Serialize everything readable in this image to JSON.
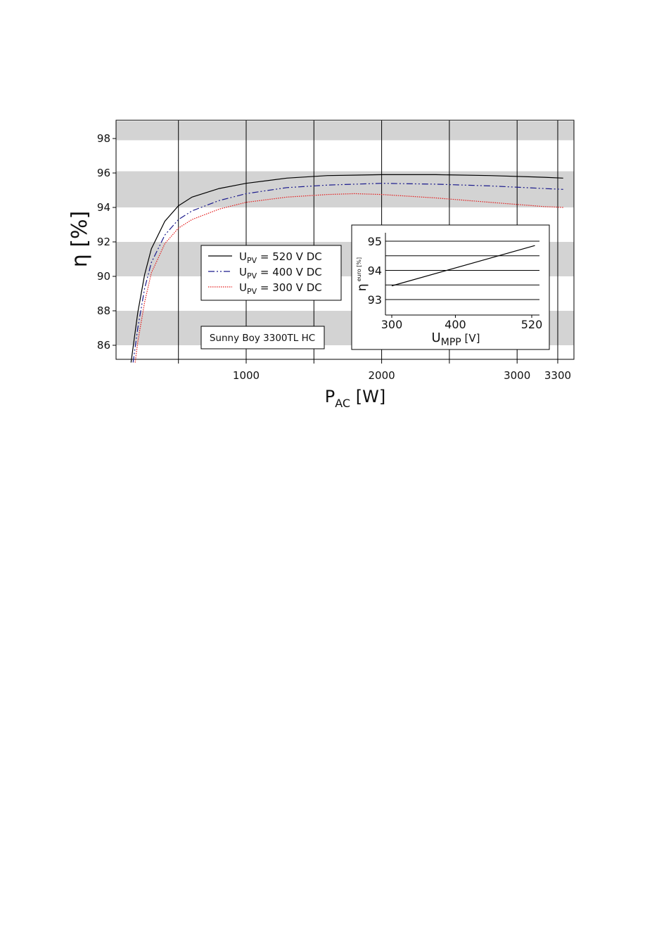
{
  "chart_data": [
    {
      "type": "line",
      "ylabel": "η [%]",
      "xlabel": {
        "main": "P",
        "sub": "AC",
        "unit": " [W]"
      },
      "ylim": [
        85,
        99
      ],
      "yticks": [
        "86",
        "88",
        "90",
        "92",
        "94",
        "96",
        "98"
      ],
      "xticks": [
        {
          "value": 1000,
          "label": "1000"
        },
        {
          "value": 2000,
          "label": "2000"
        },
        {
          "value": 3000,
          "label": "3000"
        },
        {
          "value": 3300,
          "label": "3300"
        }
      ],
      "grid": "alternating gray horizontal bands, vertical gridlines",
      "legend_placement": "center-left",
      "annotation": "Sunny Boy 3300TL HC",
      "series": [
        {
          "name": {
            "pre": "U",
            "sub": "PV",
            "post": " = 520 V DC"
          },
          "color": "#000000",
          "style": "solid",
          "points": [
            [
              150,
              85
            ],
            [
              200,
              87.9
            ],
            [
              250,
              90.1
            ],
            [
              300,
              91.6
            ],
            [
              400,
              93.2
            ],
            [
              500,
              94.1
            ],
            [
              600,
              94.6
            ],
            [
              800,
              95.1
            ],
            [
              1000,
              95.4
            ],
            [
              1300,
              95.7
            ],
            [
              1600,
              95.85
            ],
            [
              2000,
              95.9
            ],
            [
              2400,
              95.9
            ],
            [
              2800,
              95.85
            ],
            [
              3200,
              95.75
            ],
            [
              3340,
              95.7
            ]
          ]
        },
        {
          "name": {
            "pre": "U",
            "sub": "PV",
            "post": " = 400 V DC"
          },
          "color": "#1a1a8c",
          "style": "dashdot",
          "points": [
            [
              165,
              85
            ],
            [
              200,
              87
            ],
            [
              250,
              89.3
            ],
            [
              300,
              90.8
            ],
            [
              400,
              92.4
            ],
            [
              500,
              93.3
            ],
            [
              600,
              93.8
            ],
            [
              800,
              94.4
            ],
            [
              1000,
              94.8
            ],
            [
              1300,
              95.15
            ],
            [
              1600,
              95.3
            ],
            [
              2000,
              95.4
            ],
            [
              2400,
              95.35
            ],
            [
              2800,
              95.25
            ],
            [
              3200,
              95.1
            ],
            [
              3340,
              95.05
            ]
          ]
        },
        {
          "name": {
            "pre": "U",
            "sub": "PV",
            "post": " = 300 V DC"
          },
          "color": "#e41a1a",
          "style": "dotted",
          "points": [
            [
              180,
              85
            ],
            [
              200,
              86.2
            ],
            [
              250,
              88.5
            ],
            [
              300,
              90.2
            ],
            [
              400,
              91.9
            ],
            [
              500,
              92.8
            ],
            [
              600,
              93.3
            ],
            [
              800,
              93.9
            ],
            [
              1000,
              94.3
            ],
            [
              1300,
              94.6
            ],
            [
              1600,
              94.75
            ],
            [
              1800,
              94.8
            ],
            [
              2000,
              94.75
            ],
            [
              2400,
              94.55
            ],
            [
              2800,
              94.3
            ],
            [
              3200,
              94.05
            ],
            [
              3340,
              94.0
            ]
          ]
        }
      ]
    },
    {
      "type": "line",
      "ylabel": {
        "main": "η",
        "sub": "euro [%]"
      },
      "xlabel": {
        "main": "U",
        "sub": "MPP",
        "unit": " [V]"
      },
      "yticks": [
        "93",
        "94",
        "95"
      ],
      "xticks": [
        {
          "value": 300,
          "label": "300"
        },
        {
          "value": 400,
          "label": "400"
        },
        {
          "value": 520,
          "label": "520"
        }
      ],
      "xlim": [
        295,
        530
      ],
      "ylim": [
        92.5,
        95.5
      ],
      "grid": "horizontal gridlines",
      "series": [
        {
          "color": "#000000",
          "points": [
            [
              300,
              93.47
            ],
            [
              525,
              94.85
            ]
          ]
        }
      ]
    }
  ]
}
